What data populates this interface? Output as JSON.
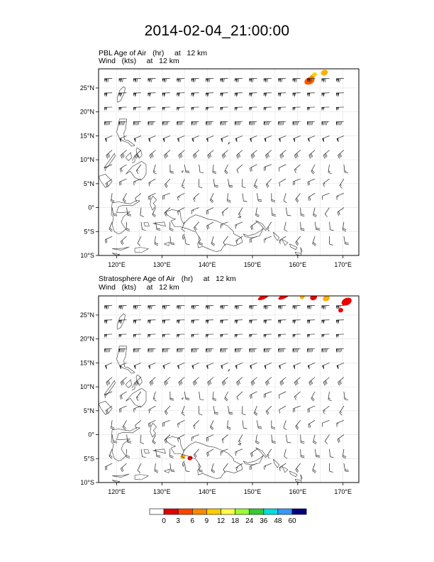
{
  "title": "2014-02-04_21:00:00",
  "panels": [
    {
      "id": "pbl",
      "subtitle_line1": "PBL Age of Air   (hr)     at   12 km",
      "subtitle_line2": "Wind   (kts)     at   12 km",
      "blobs": [
        {
          "lon": 162.6,
          "lat": 26.5,
          "color": "#ff5a00",
          "size": "lg"
        },
        {
          "lon": 163.2,
          "lat": 27.3,
          "color": "#ff8c00",
          "size": "sm"
        },
        {
          "lon": 163.7,
          "lat": 27.8,
          "color": "#ffd000",
          "size": "sm"
        },
        {
          "lon": 165.9,
          "lat": 28.2,
          "color": "#ffb000",
          "size": "md"
        }
      ]
    },
    {
      "id": "strat",
      "subtitle_line1": "Stratosphere Age of Air   (hr)     at   12 km",
      "subtitle_line2": "Wind   (kts)     at   12 km",
      "blobs": [
        {
          "lon": 152.5,
          "lat": 28.8,
          "color": "#ee0000",
          "size": "band"
        },
        {
          "lon": 157.0,
          "lat": 28.9,
          "color": "#ee0000",
          "size": "band"
        },
        {
          "lon": 161.0,
          "lat": 28.8,
          "color": "#ffb000",
          "size": "sm"
        },
        {
          "lon": 163.5,
          "lat": 28.7,
          "color": "#ee0000",
          "size": "md"
        },
        {
          "lon": 166.3,
          "lat": 28.5,
          "color": "#ffb000",
          "size": "md"
        },
        {
          "lon": 170.8,
          "lat": 27.8,
          "color": "#ee0000",
          "size": "lg"
        },
        {
          "lon": 169.5,
          "lat": 26.0,
          "color": "#ee0000",
          "size": "sm"
        },
        {
          "lon": 134.6,
          "lat": -4.6,
          "color": "#ffb000",
          "size": "sm"
        },
        {
          "lon": 136.2,
          "lat": -4.9,
          "color": "#ee0000",
          "size": "sm"
        }
      ]
    }
  ],
  "map": {
    "lon_ticks": [
      "120°E",
      "130°E",
      "140°E",
      "150°E",
      "160°E",
      "170°E"
    ],
    "lat_ticks": [
      "25°N",
      "20°N",
      "15°N",
      "10°N",
      "5°N",
      "0°",
      "5°S",
      "10°S"
    ],
    "lon_range": [
      116,
      173.5
    ],
    "lat_range": [
      -10,
      29
    ]
  },
  "colorbar": {
    "labels": [
      "0",
      "3",
      "6",
      "9",
      "12",
      "18",
      "24",
      "36",
      "48",
      "60"
    ],
    "colors": [
      "#ffffff",
      "#e00000",
      "#ff4400",
      "#ff8800",
      "#ffcc00",
      "#ffff44",
      "#99ff33",
      "#33cc33",
      "#00dddd",
      "#3399ff",
      "#000080"
    ]
  }
}
